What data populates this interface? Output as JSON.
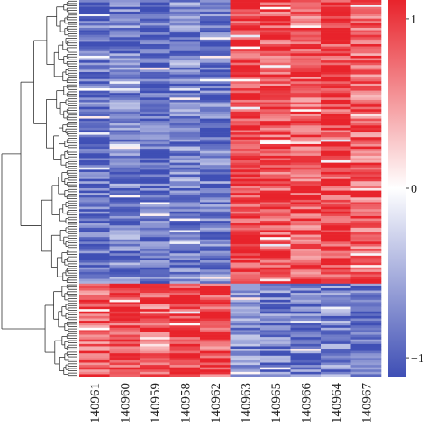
{
  "chart_data": {
    "type": "heatmap",
    "columns": [
      "140961",
      "140960",
      "140959",
      "140958",
      "140962",
      "140963",
      "140965",
      "140966",
      "140964",
      "140967"
    ],
    "groups": [
      {
        "rows": 122,
        "left_mean": -0.75,
        "right_mean": 0.8
      },
      {
        "rows": 40,
        "left_mean": 0.78,
        "right_mean": -0.72
      }
    ],
    "column_bias": [
      -0.05,
      0.05,
      -0.1,
      0.1,
      0.0,
      0.08,
      0.0,
      -0.05,
      0.05,
      -0.12
    ],
    "color_scale": {
      "low": "#3f4fb5",
      "mid": "#ffffff",
      "high": "#e8232b",
      "min": -1,
      "max": 1
    },
    "colorbar_ticks": [
      {
        "label": "1",
        "value": 0.9
      },
      {
        "label": "0",
        "value": 0.0
      },
      {
        "label": "−1",
        "value": -0.9
      }
    ],
    "dendrogram": "row clustering tree on left"
  }
}
